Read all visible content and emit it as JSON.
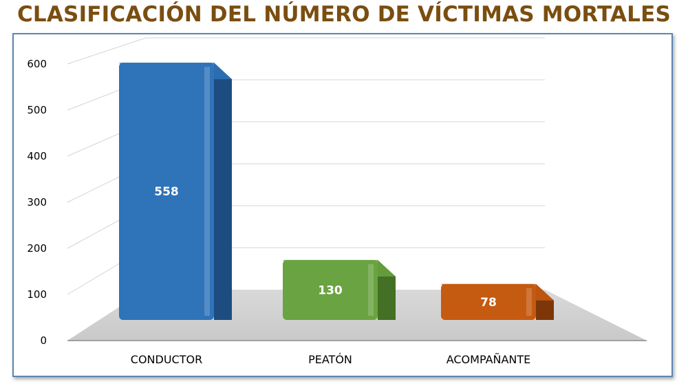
{
  "chart_data": {
    "type": "bar",
    "title": "CLASIFICACIÓN DEL NÚMERO DE VÍCTIMAS MORTALES",
    "categories": [
      "CONDUCTOR",
      "PEATÓN",
      "ACOMPAÑANTE"
    ],
    "values": [
      558,
      130,
      78
    ],
    "value_labels": [
      "558",
      "130",
      "78"
    ],
    "y_ticks": [
      "0",
      "100",
      "200",
      "300",
      "400",
      "500",
      "600"
    ],
    "ylim": [
      0,
      600
    ],
    "xlabel": "",
    "ylabel": "",
    "grid": true,
    "legend": "none",
    "colors": [
      "#2f73b9",
      "#6aa341",
      "#c55a11"
    ],
    "dark_colors": [
      "#1d4d80",
      "#437024",
      "#7d3608"
    ]
  }
}
